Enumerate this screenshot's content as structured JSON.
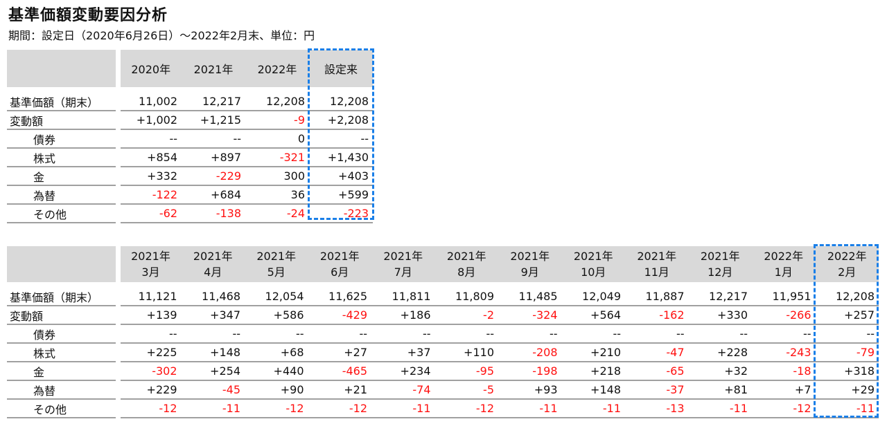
{
  "title": "基準価額変動要因分析",
  "subtitle": "期間：設定日（2020年6月26日）～2022年2月末、単位：円",
  "row_labels": [
    "基準価額（期末）",
    "変動額",
    "債券",
    "株式",
    "金",
    "為替",
    "その他"
  ],
  "table1": {
    "columns": [
      "2020年",
      "2021年",
      "2022年",
      "設定来"
    ],
    "rows": [
      [
        "11,002",
        "12,217",
        "12,208",
        "12,208"
      ],
      [
        "+1,002",
        "+1,215",
        "-9",
        "+2,208"
      ],
      [
        "--",
        "--",
        "0",
        "--"
      ],
      [
        "+854",
        "+897",
        "-321",
        "+1,430"
      ],
      [
        "+332",
        "-229",
        "300",
        "+403"
      ],
      [
        "-122",
        "+684",
        "36",
        "+599"
      ],
      [
        "-62",
        "-138",
        "-24",
        "-223"
      ]
    ]
  },
  "table2": {
    "columns": [
      [
        "2021年",
        "3月"
      ],
      [
        "2021年",
        "4月"
      ],
      [
        "2021年",
        "5月"
      ],
      [
        "2021年",
        "6月"
      ],
      [
        "2021年",
        "7月"
      ],
      [
        "2021年",
        "8月"
      ],
      [
        "2021年",
        "9月"
      ],
      [
        "2021年",
        "10月"
      ],
      [
        "2021年",
        "11月"
      ],
      [
        "2021年",
        "12月"
      ],
      [
        "2022年",
        "1月"
      ],
      [
        "2022年",
        "2月"
      ]
    ],
    "rows": [
      [
        "11,121",
        "11,468",
        "12,054",
        "11,625",
        "11,811",
        "11,809",
        "11,485",
        "12,049",
        "11,887",
        "12,217",
        "11,951",
        "12,208"
      ],
      [
        "+139",
        "+347",
        "+586",
        "-429",
        "+186",
        "-2",
        "-324",
        "+564",
        "-162",
        "+330",
        "-266",
        "+257"
      ],
      [
        "--",
        "--",
        "--",
        "--",
        "--",
        "--",
        "--",
        "--",
        "--",
        "--",
        "--",
        "--"
      ],
      [
        "+225",
        "+148",
        "+68",
        "+27",
        "+37",
        "+110",
        "-208",
        "+210",
        "-47",
        "+228",
        "-243",
        "-79"
      ],
      [
        "-302",
        "+254",
        "+440",
        "-465",
        "+234",
        "-95",
        "-198",
        "+218",
        "-65",
        "+32",
        "-18",
        "+318"
      ],
      [
        "+229",
        "-45",
        "+90",
        "+21",
        "-74",
        "-5",
        "+93",
        "+148",
        "-37",
        "+81",
        "+7",
        "+29"
      ],
      [
        "-12",
        "-11",
        "-12",
        "-12",
        "-11",
        "-12",
        "-11",
        "-11",
        "-13",
        "-11",
        "-12",
        "-11"
      ]
    ]
  },
  "colors": {
    "negative": "#ff1010",
    "header_bg": "#d9d9d9",
    "highlight_border": "#1a7fe8"
  }
}
